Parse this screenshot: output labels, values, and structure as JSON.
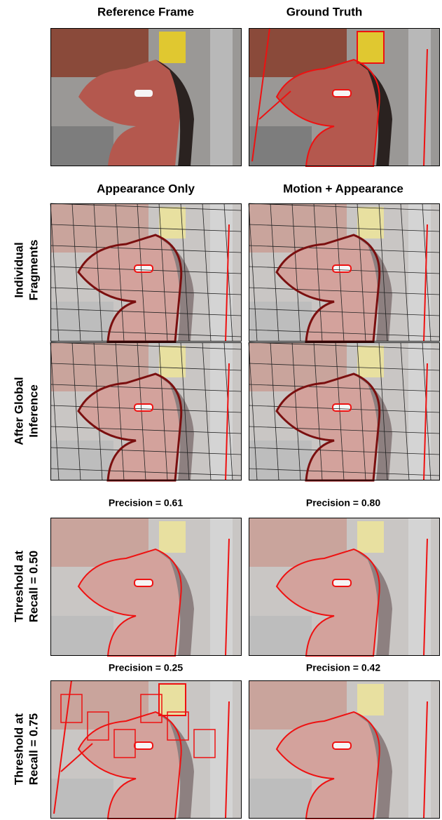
{
  "headers": {
    "top": [
      "Reference Frame",
      "Ground Truth"
    ],
    "middle": [
      "Appearance Only",
      "Motion + Appearance"
    ]
  },
  "row_labels": [
    [
      "Individual",
      "Fragments"
    ],
    [
      "After Global",
      "Inference"
    ],
    [
      "Threshold at",
      "Recall = 0.50"
    ],
    [
      "Threshold at",
      "Recall = 0.75"
    ]
  ],
  "precision": [
    [
      "Precision = 0.61",
      "Precision = 0.80"
    ],
    [
      "Precision = 0.25",
      "Precision = 0.42"
    ]
  ]
}
